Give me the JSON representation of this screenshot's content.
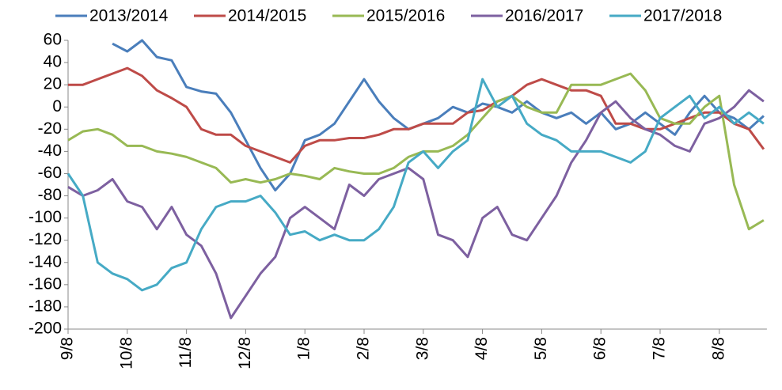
{
  "chart_data": {
    "type": "line",
    "categories": [
      "9/8",
      null,
      null,
      null,
      "10/8",
      null,
      null,
      null,
      "11/8",
      null,
      null,
      null,
      "12/8",
      null,
      null,
      null,
      "1/8",
      null,
      null,
      null,
      "2/8",
      null,
      null,
      null,
      "3/8",
      null,
      null,
      null,
      "4/8",
      null,
      null,
      null,
      "5/8",
      null,
      null,
      null,
      "6/8",
      null,
      null,
      null,
      "7/8",
      null,
      null,
      null,
      "8/8",
      null,
      null,
      null
    ],
    "ylim": [
      -200,
      60
    ],
    "yticks": [
      -200,
      -180,
      -160,
      -140,
      -120,
      -100,
      -80,
      -60,
      -40,
      -20,
      0,
      20,
      40,
      60
    ],
    "legend": "top",
    "series": [
      {
        "name": "2013/2014",
        "color": "#4a7ebb",
        "values": [
          null,
          null,
          null,
          57,
          50,
          60,
          45,
          42,
          18,
          14,
          12,
          -5,
          -30,
          -55,
          -75,
          -60,
          -30,
          -25,
          -15,
          5,
          25,
          5,
          -10,
          -20,
          -15,
          -10,
          0,
          -5,
          3,
          0,
          -5,
          5,
          -5,
          -10,
          -5,
          -15,
          -5,
          -20,
          -15,
          -5,
          -15,
          -25,
          -5,
          10,
          -5,
          -10,
          -20,
          -8
        ]
      },
      {
        "name": "2014/2015",
        "color": "#be4b48",
        "values": [
          20,
          20,
          25,
          30,
          35,
          28,
          15,
          8,
          0,
          -20,
          -25,
          -25,
          -35,
          -40,
          -45,
          -50,
          -35,
          -30,
          -30,
          -28,
          -28,
          -25,
          -20,
          -20,
          -15,
          -15,
          -15,
          -5,
          -3,
          5,
          10,
          20,
          25,
          20,
          15,
          15,
          10,
          -15,
          -15,
          -20,
          -20,
          -15,
          -10,
          -5,
          -5,
          -15,
          -20,
          -38
        ]
      },
      {
        "name": "2015/2016",
        "color": "#98b954",
        "values": [
          -30,
          -22,
          -20,
          -25,
          -35,
          -35,
          -40,
          -42,
          -45,
          -50,
          -55,
          -68,
          -65,
          -68,
          -65,
          -60,
          -62,
          -65,
          -55,
          -58,
          -60,
          -60,
          -55,
          -45,
          -40,
          -40,
          -35,
          -25,
          -10,
          5,
          10,
          0,
          -5,
          -5,
          20,
          20,
          20,
          25,
          30,
          15,
          -10,
          -15,
          -15,
          0,
          10,
          -70,
          -110,
          -102
        ]
      },
      {
        "name": "2016/2017",
        "color": "#7d60a0",
        "values": [
          -72,
          -80,
          -75,
          -65,
          -85,
          -90,
          -110,
          -90,
          -115,
          -125,
          -150,
          -190,
          -170,
          -150,
          -135,
          -100,
          -90,
          -100,
          -110,
          -70,
          -80,
          -65,
          -60,
          -55,
          -65,
          -115,
          -120,
          -135,
          -100,
          -90,
          -115,
          -120,
          -100,
          -80,
          -50,
          -30,
          -5,
          5,
          -10,
          -20,
          -25,
          -35,
          -40,
          -15,
          -10,
          0,
          15,
          5
        ]
      },
      {
        "name": "2017/2018",
        "color": "#46aac5",
        "values": [
          -60,
          -80,
          -140,
          -150,
          -155,
          -165,
          -160,
          -145,
          -140,
          -110,
          -90,
          -85,
          -85,
          -80,
          -95,
          -115,
          -112,
          -120,
          -115,
          -120,
          -120,
          -110,
          -90,
          -50,
          -40,
          -55,
          -40,
          -30,
          25,
          0,
          10,
          -15,
          -25,
          -30,
          -40,
          -40,
          -40,
          -45,
          -50,
          -40,
          -10,
          0,
          10,
          -10,
          0,
          -15,
          -5,
          -15
        ]
      }
    ]
  }
}
